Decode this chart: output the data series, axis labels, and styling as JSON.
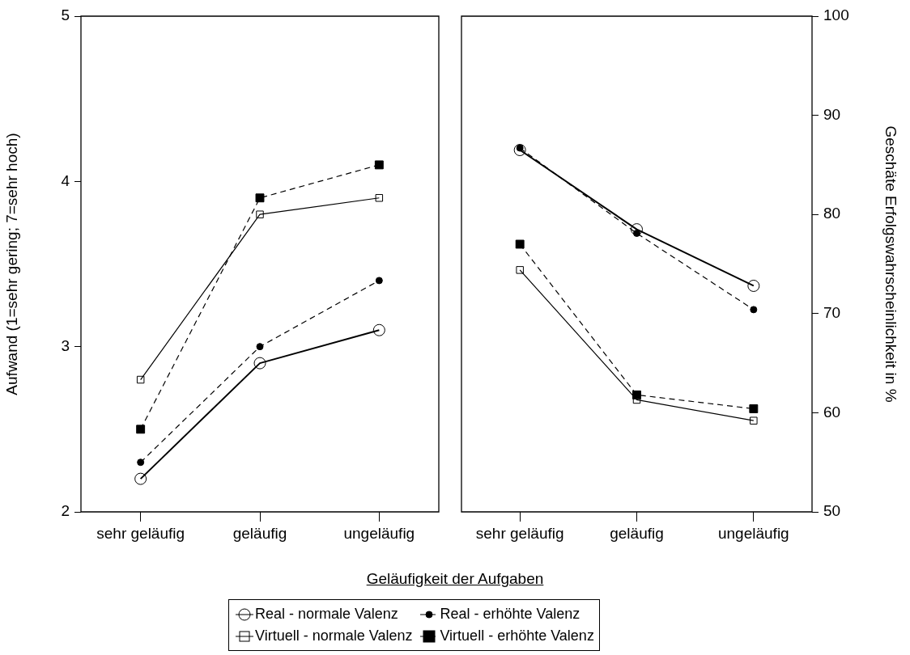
{
  "chart_data": [
    {
      "type": "line",
      "xlabel": "Geläufigkeit der Aufgaben",
      "ylabel": "Aufwand (1=sehr gering; 7=sehr hoch)",
      "categories": [
        "sehr geläufig",
        "geläufig",
        "ungeläufig"
      ],
      "ylim": [
        2,
        5
      ],
      "yticks": [
        2,
        3,
        4,
        5
      ],
      "grid": false,
      "legend": "bottom",
      "series": [
        {
          "name": "Real - normale Valenz",
          "color": "#000000",
          "marker": "circle",
          "line_style": "solid",
          "values": [
            2.2,
            2.9,
            3.1
          ]
        },
        {
          "name": "Real - erhöhte Valenz",
          "color": "#000000",
          "marker": "circle",
          "line_style": "dashed",
          "values": [
            2.3,
            3.0,
            3.4
          ]
        },
        {
          "name": "Virtuell - normale Valenz",
          "color": "#000000",
          "marker": "square",
          "line_style": "solid",
          "values": [
            2.8,
            3.8,
            3.9
          ]
        },
        {
          "name": "Virtuell - erhöhte Valenz",
          "color": "#000000",
          "marker": "square",
          "line_style": "dashed",
          "values": [
            2.5,
            3.9,
            4.1
          ]
        }
      ]
    },
    {
      "type": "line",
      "ylabel": "Geschäte Erfolgswahrscheinlichkeit in %",
      "categories": [
        "sehr geläufig",
        "geläufig",
        "ungeläufig"
      ],
      "ylim": [
        50,
        100
      ],
      "yticks": [
        50,
        60,
        70,
        80,
        90,
        100
      ],
      "grid": false,
      "series": [
        {
          "color": "#000000",
          "marker": "circle",
          "line_style": "solid",
          "values": [
            86.5,
            78.5,
            72.8
          ]
        },
        {
          "color": "#000000",
          "marker": "circle",
          "line_style": "dashed",
          "values": [
            86.7,
            78.1,
            70.4
          ]
        },
        {
          "color": "#000000",
          "marker": "square",
          "line_style": "solid",
          "values": [
            74.4,
            61.3,
            59.2
          ]
        },
        {
          "color": "#000000",
          "marker": "square",
          "line_style": "dashed",
          "values": [
            77.0,
            61.8,
            60.4
          ]
        }
      ]
    }
  ]
}
